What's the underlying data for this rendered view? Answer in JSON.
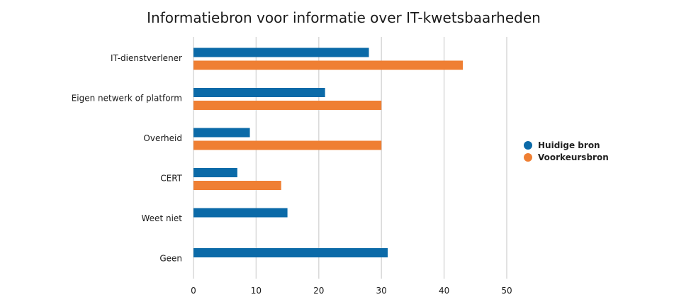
{
  "chart_data": {
    "type": "bar",
    "orientation": "horizontal",
    "title": "Informatiebron voor informatie over IT-kwetsbaarheden",
    "categories": [
      "IT-dienstverlener",
      "Eigen netwerk of platform",
      "Overheid",
      "CERT",
      "Weet niet",
      "Geen"
    ],
    "series": [
      {
        "name": "Huidige bron",
        "color": "#0b6aa8",
        "values": [
          28,
          21,
          9,
          7,
          15,
          31
        ]
      },
      {
        "name": "Voorkeursbron",
        "color": "#ef7f33",
        "values": [
          43,
          30,
          30,
          14,
          null,
          null
        ]
      }
    ],
    "xlim": [
      0,
      50
    ],
    "xticks": [
      0,
      10,
      20,
      30,
      40,
      50
    ],
    "grid": true,
    "legend_position": "right"
  }
}
